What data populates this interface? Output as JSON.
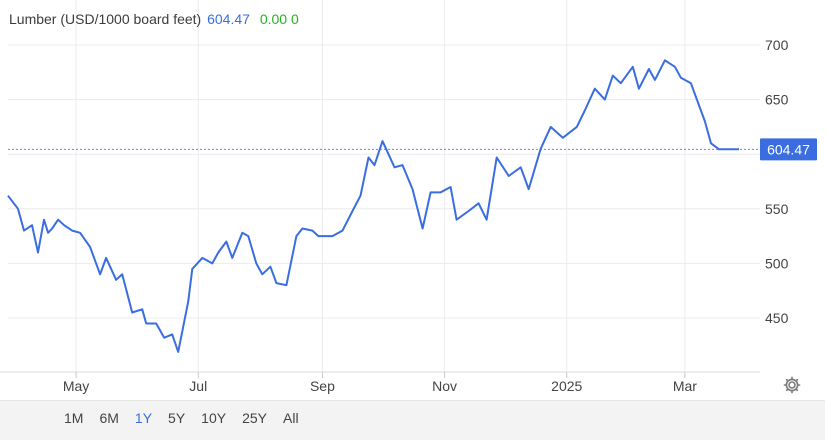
{
  "header": {
    "name": "Lumber (USD/1000 board feet)",
    "price": "604.47",
    "change": "0.00 0"
  },
  "current_price_label": "604.47",
  "ranges": [
    "1M",
    "6M",
    "1Y",
    "5Y",
    "10Y",
    "25Y",
    "All"
  ],
  "active_range": "1Y",
  "icons": {
    "settings": "gear-icon"
  },
  "colors": {
    "line": "#3a6ee0",
    "up": "#22b322",
    "price_tag": "#3a6ee0"
  },
  "chart_data": {
    "type": "line",
    "x_tick_labels": [
      "May",
      "Jul",
      "Sep",
      "Nov",
      "2025",
      "Mar"
    ],
    "y_tick_labels": [
      "700",
      "650",
      "550",
      "500",
      "450"
    ],
    "y_ticks": [
      700,
      650,
      550,
      500,
      450
    ],
    "ylim": [
      400,
      720
    ],
    "xlim": [
      "2024-03-28",
      "2025-03-31"
    ],
    "grid": true,
    "last_price": 604.47,
    "series": [
      {
        "x": [
          "2024-03-28",
          "2024-04-02",
          "2024-04-05",
          "2024-04-09",
          "2024-04-12",
          "2024-04-15",
          "2024-04-17",
          "2024-04-19",
          "2024-04-22",
          "2024-04-25",
          "2024-04-29",
          "2024-05-03",
          "2024-05-08",
          "2024-05-13",
          "2024-05-16",
          "2024-05-21",
          "2024-05-24",
          "2024-05-29",
          "2024-06-03",
          "2024-06-05",
          "2024-06-10",
          "2024-06-14",
          "2024-06-18",
          "2024-06-21",
          "2024-06-26",
          "2024-06-28",
          "2024-07-03",
          "2024-07-08",
          "2024-07-11",
          "2024-07-15",
          "2024-07-18",
          "2024-07-23",
          "2024-07-26",
          "2024-07-30",
          "2024-08-02",
          "2024-08-06",
          "2024-08-09",
          "2024-08-14",
          "2024-08-19",
          "2024-08-22",
          "2024-08-27",
          "2024-08-30",
          "2024-09-03",
          "2024-09-06",
          "2024-09-11",
          "2024-09-16",
          "2024-09-20",
          "2024-09-24",
          "2024-09-27",
          "2024-10-01",
          "2024-10-07",
          "2024-10-11",
          "2024-10-16",
          "2024-10-21",
          "2024-10-25",
          "2024-10-30",
          "2024-11-04",
          "2024-11-07",
          "2024-11-13",
          "2024-11-18",
          "2024-11-22",
          "2024-11-27",
          "2024-12-03",
          "2024-12-09",
          "2024-12-13",
          "2024-12-19",
          "2024-12-24",
          "2024-12-30",
          "2025-01-06",
          "2025-01-10",
          "2025-01-15",
          "2025-01-20",
          "2025-01-24",
          "2025-01-28",
          "2025-02-03",
          "2025-02-06",
          "2025-02-11",
          "2025-02-14",
          "2025-02-19",
          "2025-02-24",
          "2025-02-27",
          "2025-03-04",
          "2025-03-07",
          "2025-03-11",
          "2025-03-14",
          "2025-03-18",
          "2025-03-21",
          "2025-03-25",
          "2025-03-28"
        ],
        "y": [
          562,
          550,
          530,
          535,
          510,
          540,
          528,
          532,
          540,
          535,
          530,
          528,
          515,
          490,
          505,
          485,
          490,
          455,
          458,
          445,
          445,
          432,
          435,
          419,
          465,
          495,
          505,
          500,
          510,
          520,
          505,
          528,
          525,
          500,
          490,
          497,
          482,
          480,
          525,
          532,
          530,
          525,
          525,
          525,
          530,
          548,
          562,
          597,
          590,
          612,
          588,
          590,
          568,
          532,
          565,
          565,
          570,
          540,
          548,
          555,
          540,
          597,
          580,
          588,
          568,
          605,
          625,
          615,
          625,
          640,
          660,
          650,
          672,
          665,
          680,
          660,
          678,
          668,
          686,
          680,
          670,
          665,
          650,
          630,
          610,
          604.47,
          604.47,
          604.47,
          604.47
        ]
      }
    ]
  }
}
